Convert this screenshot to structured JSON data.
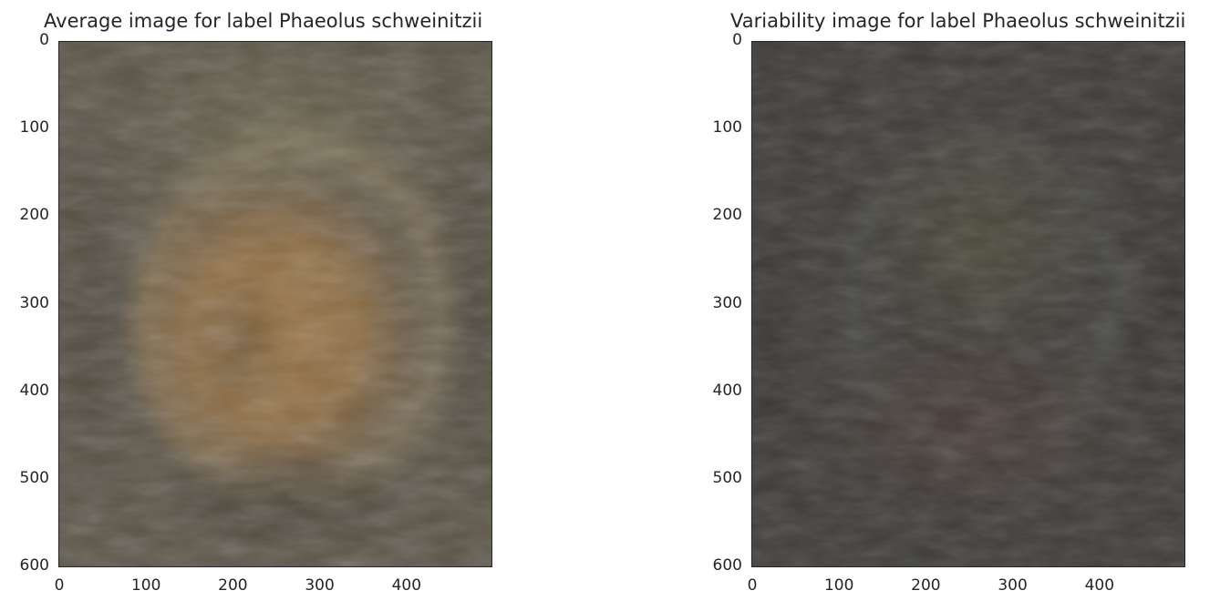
{
  "chart_data": [
    {
      "type": "heatmap",
      "title": "Average image for label Phaeolus schweinitzii",
      "x_ticks": [
        0,
        100,
        200,
        300,
        400
      ],
      "y_ticks": [
        0,
        100,
        200,
        300,
        400,
        500,
        600
      ],
      "xlim": [
        0,
        500
      ],
      "ylim": [
        600,
        0
      ],
      "grid": false,
      "colors": {
        "background": "#5a5447",
        "center": "#9a7442",
        "halo": "#8a7a5c",
        "dark": "#3f3a31",
        "green_tint": "#6b6a4e"
      }
    },
    {
      "type": "heatmap",
      "title": "Variability image for label Phaeolus schweinitzii",
      "x_ticks": [
        0,
        100,
        200,
        300,
        400
      ],
      "y_ticks": [
        0,
        100,
        200,
        300,
        400,
        500,
        600
      ],
      "xlim": [
        0,
        500
      ],
      "ylim": [
        600,
        0
      ],
      "grid": false,
      "colors": {
        "background": "#3e3c38",
        "center": "#4d4a3a",
        "halo": "#4a4a45",
        "dark": "#322f2d",
        "red_tint": "#4a3a37"
      }
    }
  ]
}
